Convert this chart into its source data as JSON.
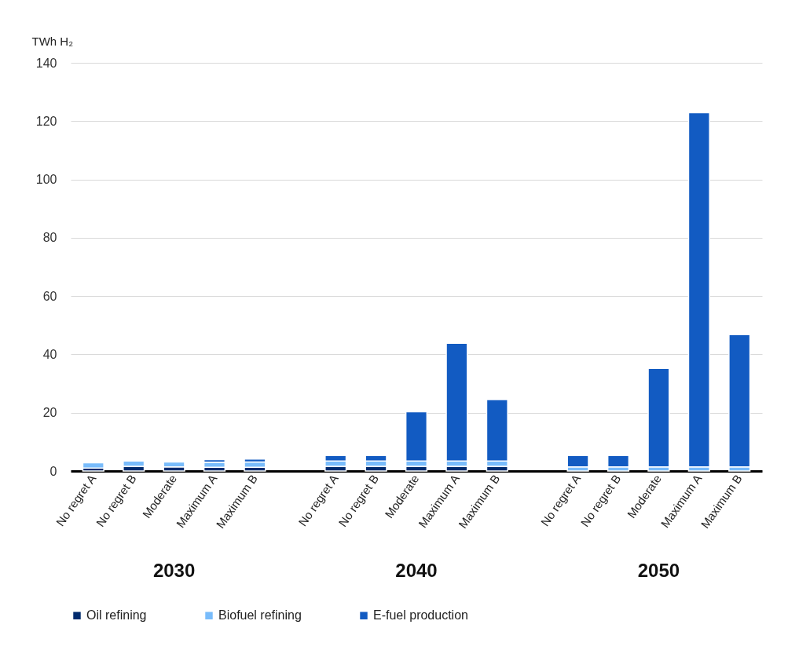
{
  "chart_data": {
    "type": "bar",
    "stacked": true,
    "ylabel": "TWh H₂",
    "categories": [
      "No regret A",
      "No regret B",
      "Moderate",
      "Maximum A",
      "Maximum B",
      "No regret A",
      "No regret B",
      "Moderate",
      "Maximum A",
      "Maximum B",
      "No regret A",
      "No regret B",
      "Moderate",
      "Maximum A",
      "Maximum B"
    ],
    "series": [
      {
        "name": "Oil refining",
        "color": "#002b6e",
        "values": [
          1.0,
          1.6,
          1.4,
          1.3,
          1.3,
          1.6,
          1.6,
          1.6,
          1.6,
          1.6,
          null,
          null,
          null,
          null,
          null
        ]
      },
      {
        "name": "Biofuel refining",
        "color": "#79bcfb",
        "values": [
          1.8,
          1.8,
          1.7,
          1.7,
          1.8,
          1.8,
          1.8,
          1.8,
          1.8,
          1.8,
          1.4,
          1.4,
          1.4,
          1.4,
          1.4
        ]
      },
      {
        "name": "E-fuel production",
        "color": "#125bc2",
        "values": [
          null,
          null,
          null,
          0.9,
          1.0,
          1.9,
          1.9,
          16.9,
          40.4,
          21.1,
          3.9,
          3.9,
          33.8,
          121.5,
          45.4
        ]
      }
    ],
    "ylim": [
      0,
      140
    ],
    "yticks": [
      0,
      20,
      40,
      60,
      80,
      100,
      120,
      140
    ],
    "grid": "y",
    "legend": "bottom",
    "annotations": [
      "2030",
      "2040",
      "2050"
    ]
  }
}
